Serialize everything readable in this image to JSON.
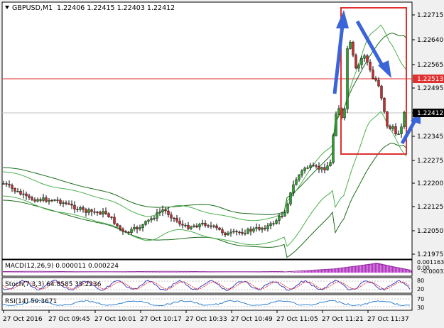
{
  "header": {
    "symbol_label": "GBPUSD,M1",
    "ohlc_label": "1.22406 1.22415 1.22403 1.22412"
  },
  "price_axis": {
    "ticks": [
      "1.22715",
      "1.22640",
      "1.22565",
      "1.22495",
      "1.22420",
      "1.22345",
      "1.22275",
      "1.22200",
      "1.22125",
      "1.22050",
      "1.21975"
    ],
    "red_line_label": "1.22513",
    "current_label": "1.22412"
  },
  "indicators": {
    "macd_label": "MACD(12,26,9) 0.000011 0.000224",
    "macd_axis": [
      "0.001163",
      "0.00",
      "-0.000338"
    ],
    "stoch_label": "Stoch(7,3,3) 64.8585 39.2236",
    "stoch_axis": [
      "80",
      "20"
    ],
    "rsi_label": "RSI(14) 50.3671",
    "rsi_axis": [
      "70",
      "30"
    ]
  },
  "time_axis": [
    "27 Oct 2016",
    "27 Oct 09:45",
    "27 Oct 10:01",
    "27 Oct 10:17",
    "27 Oct 10:33",
    "27 Oct 10:49",
    "27 Oct 11:05",
    "27 Oct 11:21",
    "27 Oct 11:37"
  ],
  "colors": {
    "background": "#f0f0f0",
    "chart_bg": "#ffffff",
    "bull": "#2e9e2e",
    "bear": "#c03030",
    "band": "#1a6b1a",
    "band_inner": "#4caf4c",
    "red_line": "#e03030",
    "annotation_box": "#e03030",
    "arrow": "#3a64d8",
    "macd_hist": "#b030c0",
    "stoch_main": "#4040c0",
    "stoch_signal": "#e04040",
    "rsi": "#3080d0"
  },
  "icons": {
    "dropdown": "dropdown-triangle-icon"
  }
}
